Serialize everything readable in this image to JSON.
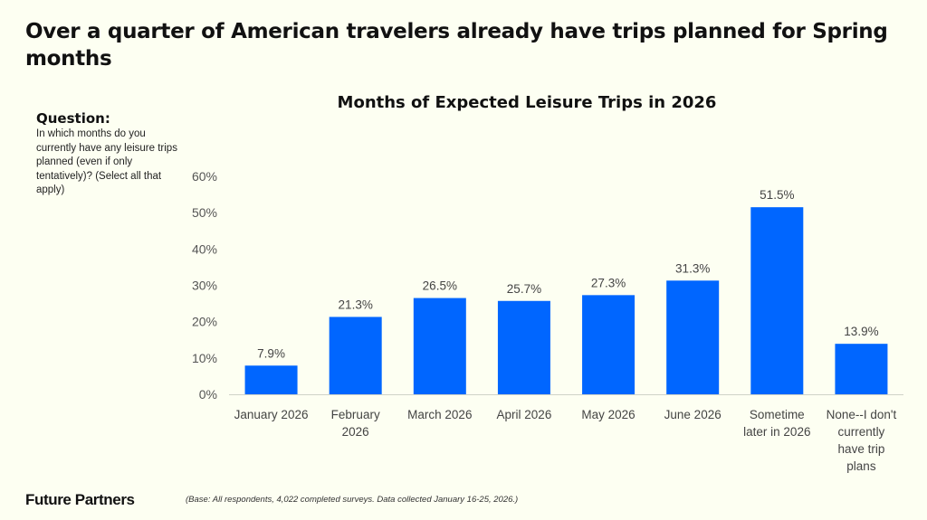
{
  "headline": "Over a quarter of American travelers already have trips planned for Spring months",
  "question": {
    "label": "Question:",
    "text": "In which months do you currently have any leisure trips planned (even if only tentatively)? (Select all that apply)"
  },
  "footer": {
    "brand": "Future Partners",
    "note": "(Base: All respondents, 4,022 completed surveys. Data collected January 16-25, 2026.)"
  },
  "colors": {
    "bar": "#0066ff",
    "axis": "#cfd3c8",
    "tick_text": "#555555",
    "label_text": "#444444"
  },
  "chart_data": {
    "type": "bar",
    "title": "Months of Expected Leisure Trips in 2026",
    "xlabel": "",
    "ylabel": "",
    "ylim": [
      0,
      60
    ],
    "yticks": [
      "0%",
      "10%",
      "20%",
      "30%",
      "40%",
      "50%",
      "60%"
    ],
    "ytick_values": [
      0,
      10,
      20,
      30,
      40,
      50,
      60
    ],
    "grid": false,
    "legend": "none",
    "categories": [
      [
        "January 2026"
      ],
      [
        "February",
        "2026"
      ],
      [
        "March 2026"
      ],
      [
        "April 2026"
      ],
      [
        "May 2026"
      ],
      [
        "June 2026"
      ],
      [
        "Sometime",
        "later in 2026"
      ],
      [
        "None--I don't",
        "currently",
        "have trip",
        "plans"
      ]
    ],
    "values": [
      7.9,
      21.3,
      26.5,
      25.7,
      27.3,
      31.3,
      51.5,
      13.9
    ],
    "data_labels": [
      "7.9%",
      "21.3%",
      "26.5%",
      "25.7%",
      "27.3%",
      "31.3%",
      "51.5%",
      "13.9%"
    ]
  }
}
